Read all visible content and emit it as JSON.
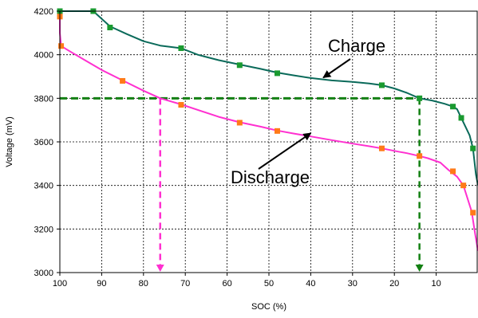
{
  "chart_data": {
    "type": "line",
    "xlabel": "SOC (%)",
    "ylabel": "Voltage (mV)",
    "xlim": [
      100,
      0
    ],
    "ylim": [
      3000,
      4200
    ],
    "x_ticks": [
      100,
      90,
      80,
      70,
      60,
      50,
      40,
      30,
      20,
      10
    ],
    "y_ticks": [
      3000,
      3200,
      3400,
      3600,
      3800,
      4000,
      4200
    ],
    "grid": true,
    "series": [
      {
        "name": "Charge",
        "color": "#0a6a5a",
        "marker_color": "#1a9a30",
        "points": [
          [
            100,
            4200
          ],
          [
            92,
            4200
          ],
          [
            88,
            4130
          ],
          [
            84,
            4095
          ],
          [
            80,
            4062
          ],
          [
            76,
            4042
          ],
          [
            71,
            4030
          ],
          [
            67,
            4000
          ],
          [
            62,
            3975
          ],
          [
            57,
            3955
          ],
          [
            52,
            3935
          ],
          [
            48,
            3918
          ],
          [
            44,
            3905
          ],
          [
            40,
            3893
          ],
          [
            35,
            3882
          ],
          [
            30,
            3875
          ],
          [
            26,
            3868
          ],
          [
            23,
            3860
          ],
          [
            20,
            3845
          ],
          [
            17,
            3825
          ],
          [
            14,
            3800
          ],
          [
            11,
            3790
          ],
          [
            8,
            3775
          ],
          [
            6,
            3762
          ],
          [
            5,
            3750
          ],
          [
            4,
            3710
          ],
          [
            3,
            3670
          ],
          [
            2,
            3630
          ],
          [
            1.2,
            3570
          ],
          [
            0.5,
            3450
          ],
          [
            0,
            3400
          ]
        ],
        "markers": [
          [
            100,
            4200
          ],
          [
            92,
            4200
          ],
          [
            88,
            4125
          ],
          [
            71,
            4030
          ],
          [
            57,
            3952
          ],
          [
            48,
            3915
          ],
          [
            23,
            3860
          ],
          [
            14,
            3800
          ],
          [
            6,
            3762
          ],
          [
            4,
            3710
          ],
          [
            1.2,
            3570
          ]
        ]
      },
      {
        "name": "Discharge",
        "color": "#ff30d0",
        "marker_color": "#ff7a18",
        "points": [
          [
            100,
            4190
          ],
          [
            100,
            4100
          ],
          [
            99.7,
            4040
          ],
          [
            98,
            4020
          ],
          [
            94,
            3975
          ],
          [
            90,
            3930
          ],
          [
            85,
            3882
          ],
          [
            80,
            3835
          ],
          [
            76,
            3800
          ],
          [
            71,
            3772
          ],
          [
            66,
            3740
          ],
          [
            62,
            3715
          ],
          [
            57,
            3690
          ],
          [
            52,
            3670
          ],
          [
            48,
            3652
          ],
          [
            44,
            3638
          ],
          [
            40,
            3625
          ],
          [
            35,
            3608
          ],
          [
            30,
            3592
          ],
          [
            26,
            3580
          ],
          [
            23,
            3570
          ],
          [
            19,
            3555
          ],
          [
            17,
            3548
          ],
          [
            14,
            3535
          ],
          [
            12,
            3525
          ],
          [
            9,
            3505
          ],
          [
            7,
            3470
          ],
          [
            5,
            3440
          ],
          [
            3.5,
            3400
          ],
          [
            2.5,
            3340
          ],
          [
            1.5,
            3280
          ],
          [
            0.7,
            3180
          ],
          [
            0,
            3100
          ]
        ],
        "markers": [
          [
            100,
            4175
          ],
          [
            99.7,
            4040
          ],
          [
            85,
            3880
          ],
          [
            71,
            3770
          ],
          [
            57,
            3688
          ],
          [
            48,
            3650
          ],
          [
            23,
            3570
          ],
          [
            14,
            3535
          ],
          [
            6,
            3465
          ],
          [
            3.5,
            3400
          ],
          [
            1.2,
            3275
          ]
        ]
      }
    ],
    "reference_lines": [
      {
        "type": "horizontal",
        "y": 3800,
        "from_x": 100,
        "to_x": 14,
        "color": "#138013",
        "style": "dashed"
      },
      {
        "type": "vertical",
        "x": 76,
        "from_y": 3800,
        "to_y": 3000,
        "color": "#ff30d0",
        "style": "dashed",
        "arrow": true
      },
      {
        "type": "vertical",
        "x": 14,
        "from_y": 3800,
        "to_y": 3000,
        "color": "#138013",
        "style": "dashed",
        "arrow": true
      }
    ],
    "annotations": [
      {
        "text": "Charge",
        "target": [
          37,
          3895
        ]
      },
      {
        "text": "Discharge",
        "target": [
          40,
          3640
        ]
      }
    ]
  }
}
